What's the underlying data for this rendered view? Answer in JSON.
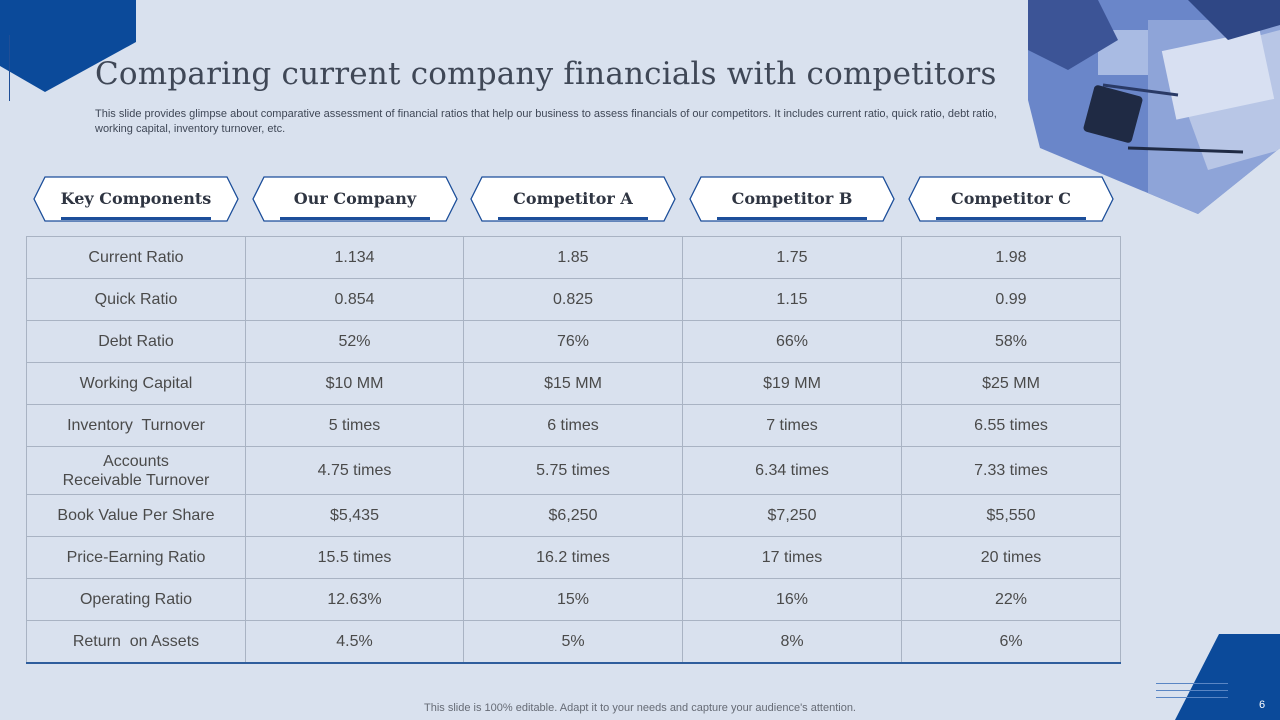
{
  "slide": {
    "title": "Comparing current company financials with competitors",
    "subtitle": "This slide provides glimpse about comparative assessment of financial ratios that help our business to assess financials of our competitors. It includes current ratio, quick ratio, debt ratio, working capital, inventory turnover, etc.",
    "footer": "This slide is 100% editable. Adapt it to your needs and capture your audience's attention.",
    "page_number": "6"
  },
  "colors": {
    "background": "#d9e1ee",
    "accent_blue": "#0b4a9a",
    "underline_blue": "#1c4e9a",
    "border": "#a9b3c3"
  },
  "table": {
    "headers": [
      "Key Components",
      "Our Company",
      "Competitor A",
      "Competitor B",
      "Competitor C"
    ],
    "rows": [
      [
        "Current Ratio",
        "1.134",
        "1.85",
        "1.75",
        "1.98"
      ],
      [
        "Quick Ratio",
        "0.854",
        "0.825",
        "1.15",
        "0.99"
      ],
      [
        "Debt Ratio",
        "52%",
        "76%",
        "66%",
        "58%"
      ],
      [
        "Working Capital",
        "$10 MM",
        "$15 MM",
        "$19 MM",
        "$25 MM"
      ],
      [
        "Inventory  Turnover",
        "5 times",
        "6 times",
        "7 times",
        "6.55 times"
      ],
      [
        "Accounts\nReceivable Turnover",
        "4.75 times",
        "5.75 times",
        "6.34 times",
        "7.33 times"
      ],
      [
        "Book Value Per Share",
        "$5,435",
        "$6,250",
        "$7,250",
        "$5,550"
      ],
      [
        "Price-Earning Ratio",
        "15.5 times",
        "16.2 times",
        "17 times",
        "20 times"
      ],
      [
        "Operating Ratio",
        "12.63%",
        "15%",
        "16%",
        "22%"
      ],
      [
        "Return  on Assets",
        "4.5%",
        "5%",
        "8%",
        "6%"
      ]
    ]
  },
  "icons": {
    "photo": "office-meeting-photo",
    "corner": "corner-hexagon-shape"
  }
}
